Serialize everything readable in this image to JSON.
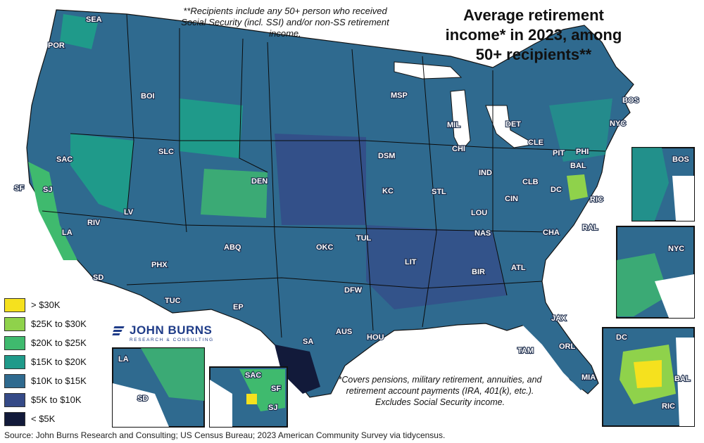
{
  "title": "Average retirement income* in 2023, among 50+ recipients**",
  "note_recipients": "**Recipients include any 50+ person who received Social Security (incl. SSI) and/or non-SS retirement income.",
  "note_income": "*Covers pensions, military retirement, annuities, and retirement account payments (IRA, 401(k), etc.). Excludes Social Security income.",
  "source": "Source: John Burns Research and Consulting; US Census Bureau; 2023 American Community Survey via tidycensus.",
  "logo": {
    "name": "JOHN BURNS",
    "tagline": "RESEARCH & CONSULTING"
  },
  "legend": [
    {
      "label": "> $30K",
      "color": "#f5e11e"
    },
    {
      "label": "$25K to $30K",
      "color": "#8fd24b"
    },
    {
      "label": "$20K to $25K",
      "color": "#3fba6e"
    },
    {
      "label": "$15K to $20K",
      "color": "#1f9a8a"
    },
    {
      "label": "$10K to $15K",
      "color": "#2f6a8f"
    },
    {
      "label": "$5K to $10K",
      "color": "#354a87"
    },
    {
      "label": "< $5K",
      "color": "#121a3a"
    }
  ],
  "cities": {
    "SEA": "SEA",
    "POR": "POR",
    "BOI": "BOI",
    "SAC": "SAC",
    "SF": "SF",
    "SJ": "SJ",
    "SLC": "SLC",
    "DEN": "DEN",
    "LV": "LV",
    "RIV": "RIV",
    "LA": "LA",
    "SD": "SD",
    "PHX": "PHX",
    "TUC": "TUC",
    "ABQ": "ABQ",
    "EP": "EP",
    "MSP": "MSP",
    "DSM": "DSM",
    "KC": "KC",
    "OKC": "OKC",
    "TUL": "TUL",
    "DFW": "DFW",
    "AUS": "AUS",
    "SA": "SA",
    "HOU": "HOU",
    "LIT": "LIT",
    "STL": "STL",
    "MIL": "MIL",
    "CHI": "CHI",
    "DET": "DET",
    "IND": "IND",
    "CIN": "CIN",
    "LOU": "LOU",
    "CLB": "CLB",
    "CLE": "CLE",
    "PIT": "PIT",
    "NAS": "NAS",
    "BIR": "BIR",
    "ATL": "ATL",
    "CHA": "CHA",
    "RAL": "RAL",
    "RIC": "RIC",
    "DC": "DC",
    "BAL": "BAL",
    "PHI": "PHI",
    "NYC": "NYC",
    "BOS": "BOS",
    "JAX": "JAX",
    "TAM": "TAM",
    "ORL": "ORL",
    "MIA": "MIA"
  },
  "insets": {
    "boston": [
      "BOS"
    ],
    "nyc": [
      "NYC"
    ],
    "dc": [
      "DC",
      "BAL",
      "RIC"
    ],
    "la": [
      "LA",
      "SD"
    ],
    "sf": [
      "SAC",
      "SF",
      "SJ"
    ]
  }
}
